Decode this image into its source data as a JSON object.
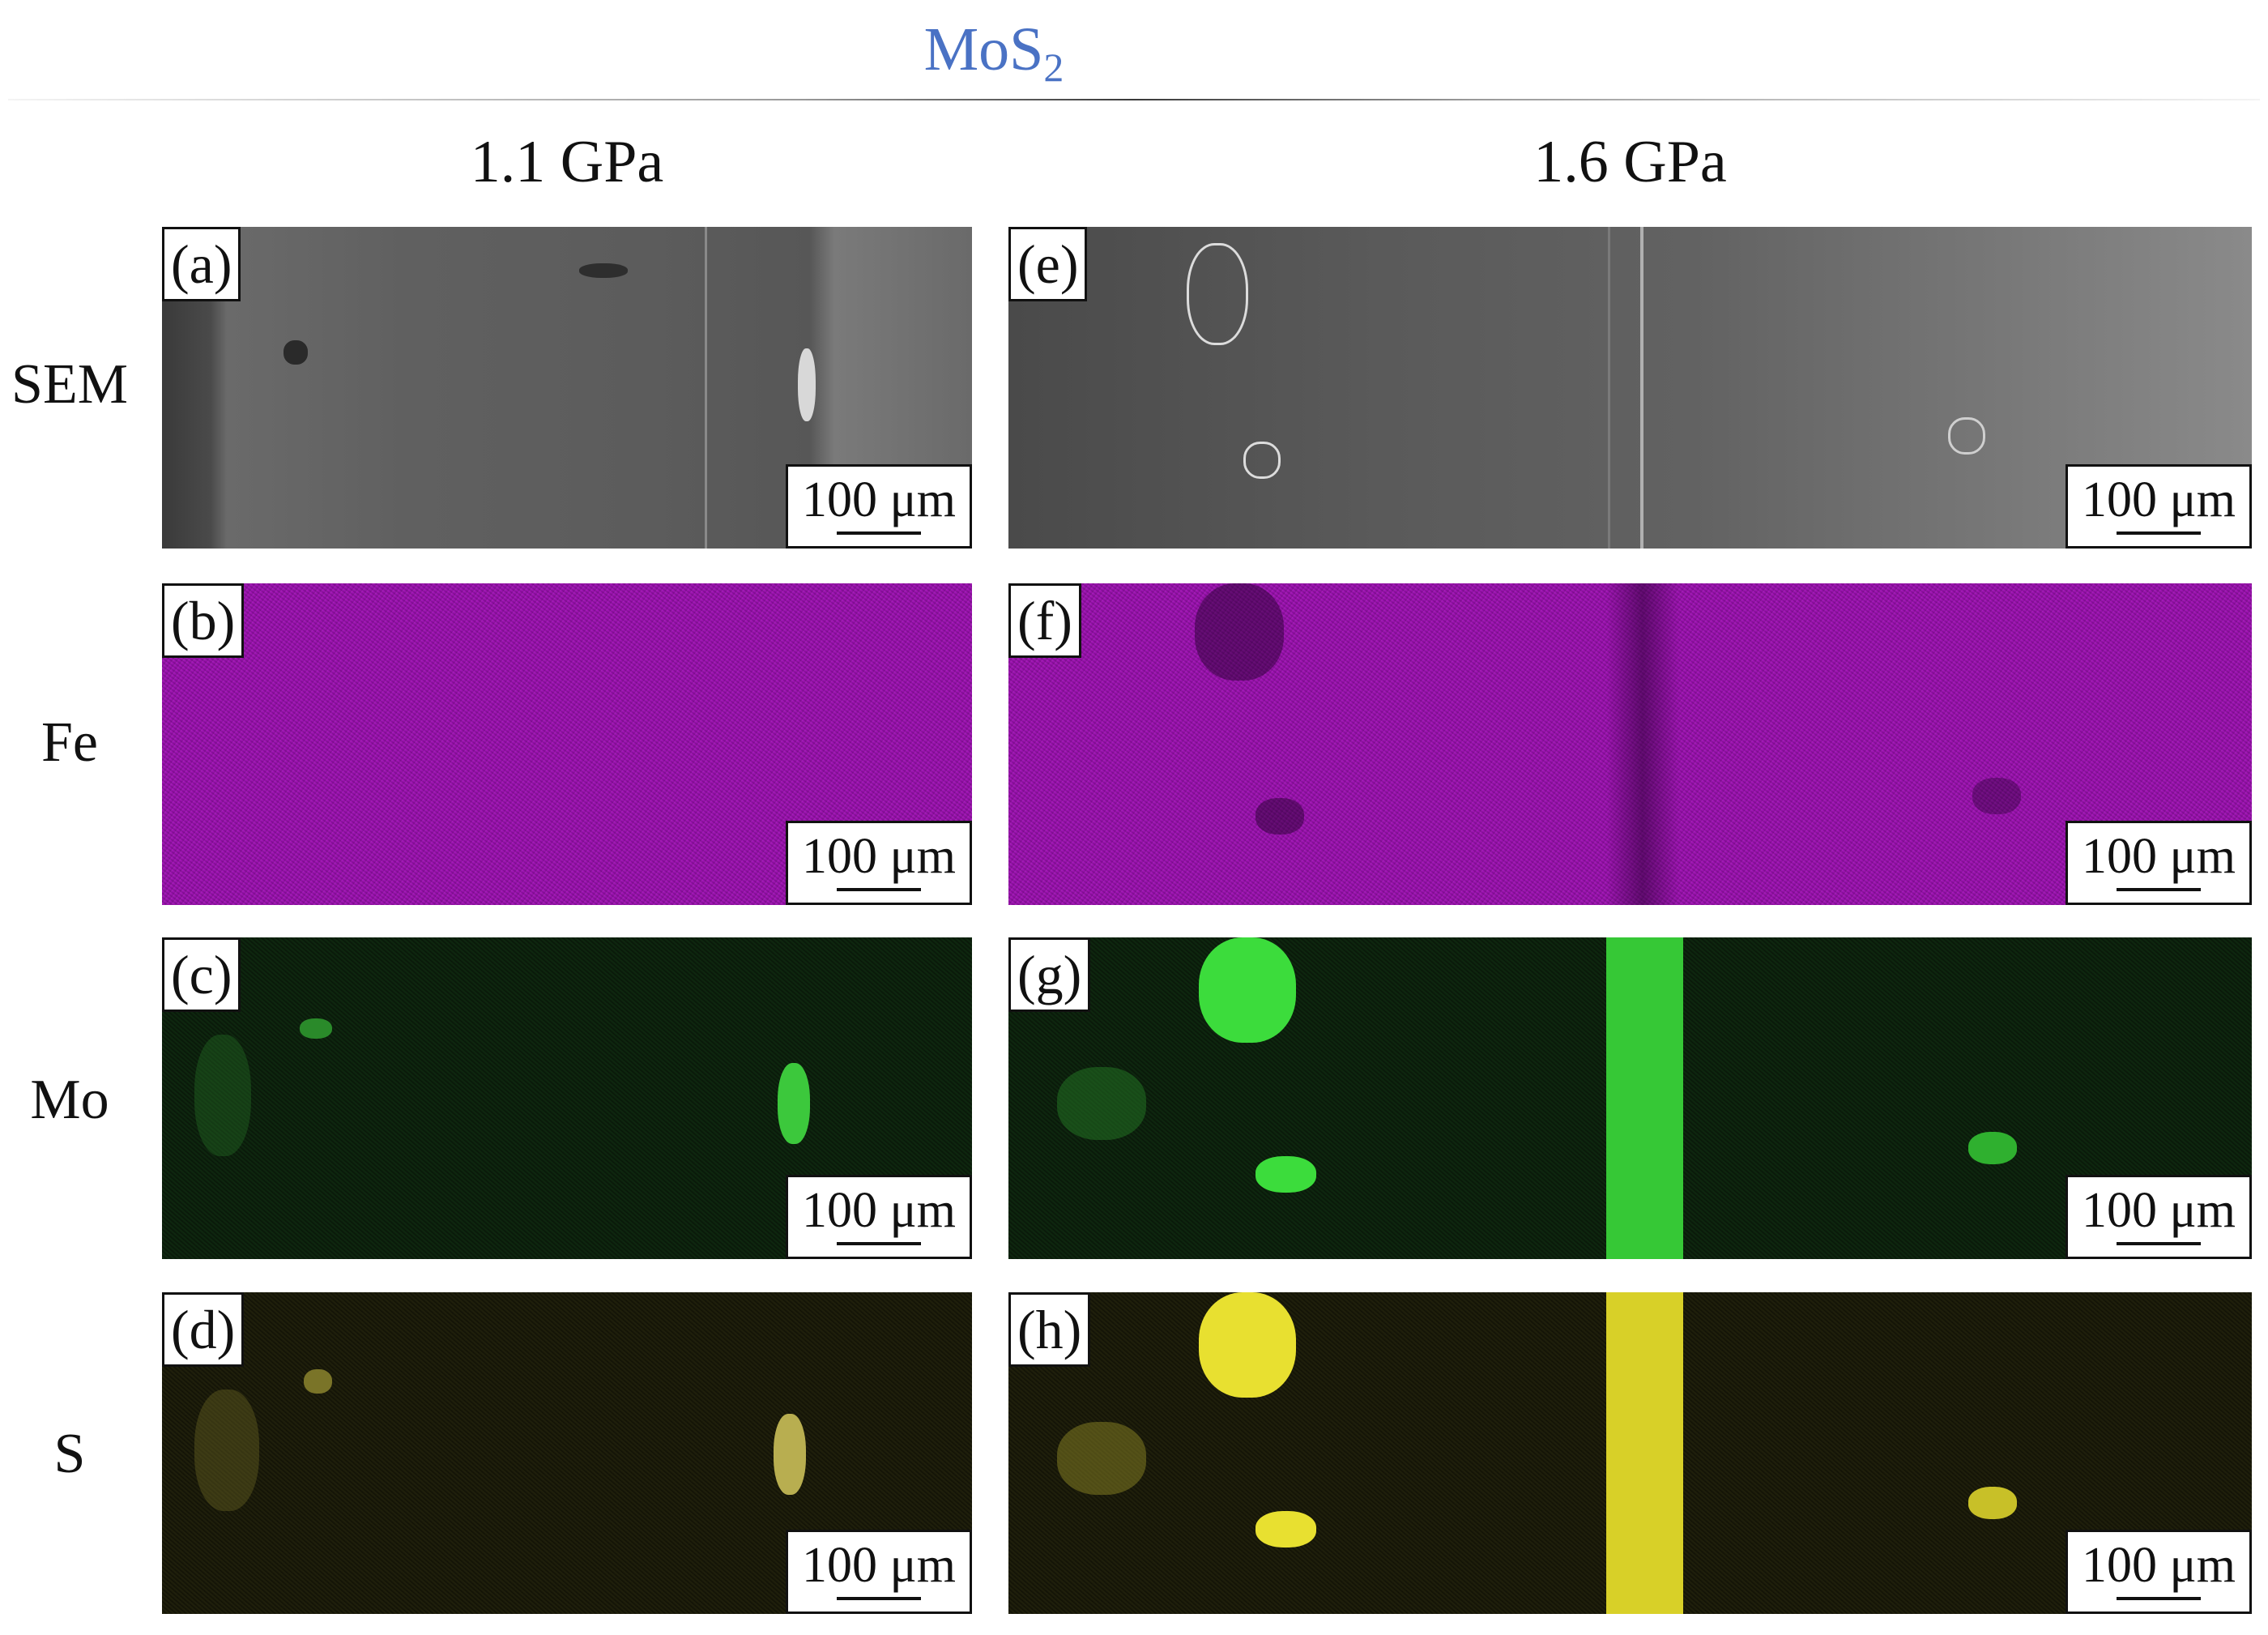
{
  "title": {
    "main": "MoS",
    "sub": "2"
  },
  "columns": [
    "1.1 GPa",
    "1.6 GPa"
  ],
  "rows": [
    "SEM",
    "Fe",
    "Mo",
    "S"
  ],
  "panels": {
    "a": "(a)",
    "b": "(b)",
    "c": "(c)",
    "d": "(d)",
    "e": "(e)",
    "f": "(f)",
    "g": "(g)",
    "h": "(h)"
  },
  "scale_bar": "100 μm",
  "colors": {
    "title": "#4a72c4",
    "fe_map": "#a012b4",
    "mo_map": "#3cdc3c",
    "s_map": "#e8e030",
    "sem": "#5e5e5e"
  }
}
